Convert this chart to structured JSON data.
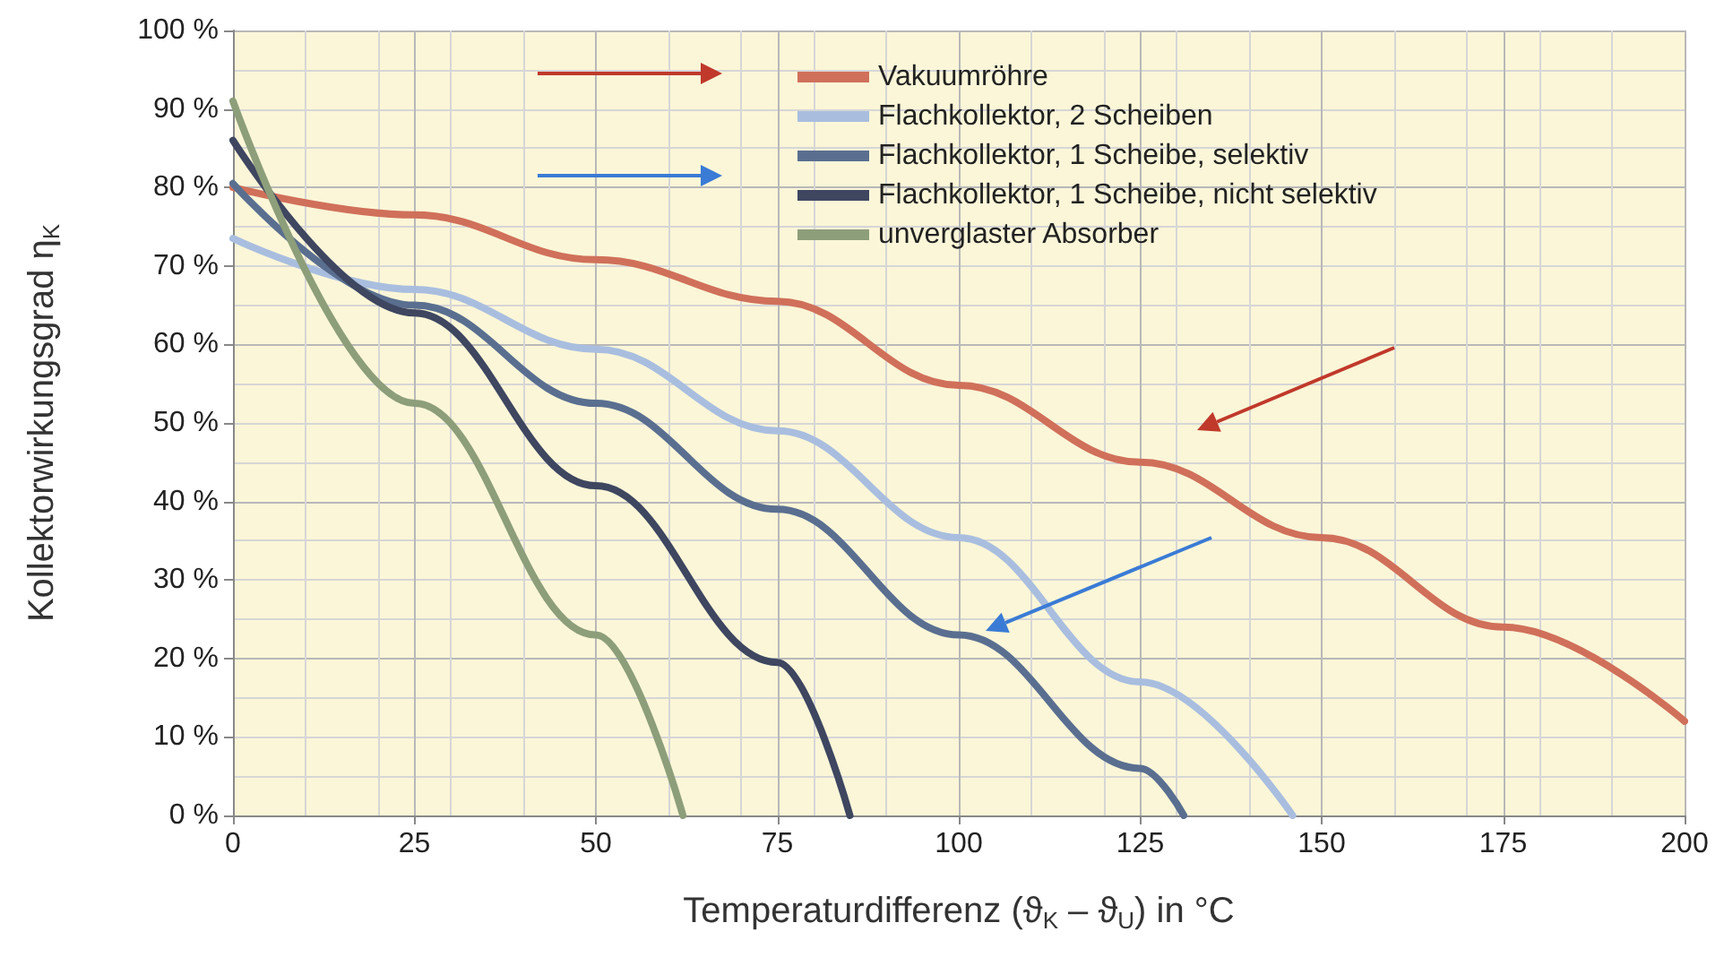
{
  "chart_data": {
    "type": "line",
    "xlabel": "Temperaturdifferenz (ϑ$_{K}$ – ϑ$_{U}$) in °C",
    "ylabel": "Kollektorwirkungsgrad η$_{K}$",
    "series": [
      {
        "name": "Vakuumröhre",
        "color": "#d0705a",
        "x": [
          0,
          25,
          50,
          75,
          100,
          125,
          150,
          175,
          200
        ],
        "values": [
          80,
          76.5,
          70.8,
          65.5,
          54.8,
          45,
          35.4,
          24,
          12
        ]
      },
      {
        "name": "Flachkollektor, 2 Scheiben",
        "color": "#a9bedf",
        "x": [
          0,
          25,
          50,
          75,
          100,
          125,
          146
        ],
        "values": [
          73.5,
          67,
          59.4,
          49,
          35.4,
          17,
          0
        ]
      },
      {
        "name": "Flachkollektor, 1 Scheibe, selektiv",
        "color": "#5a6f90",
        "x": [
          0,
          25,
          50,
          75,
          100,
          125,
          131
        ],
        "values": [
          80.5,
          65,
          52.5,
          39,
          23,
          6,
          0
        ]
      },
      {
        "name": "Flachkollektor, 1 Scheibe, nicht selektiv",
        "color": "#3e4660",
        "x": [
          0,
          25,
          50,
          75,
          85
        ],
        "values": [
          86,
          64,
          42,
          19.5,
          0
        ]
      },
      {
        "name": "unverglaster Absorber",
        "color": "#8d9e7a",
        "x": [
          0,
          25,
          50,
          62
        ],
        "values": [
          91,
          52.5,
          23,
          0
        ]
      }
    ],
    "xlim": [
      0,
      200
    ],
    "xticks": [
      0,
      25,
      50,
      75,
      100,
      125,
      150,
      175,
      200
    ],
    "ylim": [
      0,
      100
    ],
    "yticks": [
      {
        "value": 0,
        "label": "0 %"
      },
      {
        "value": 10,
        "label": "10 %"
      },
      {
        "value": 20,
        "label": "20 %"
      },
      {
        "value": 30,
        "label": "30 %"
      },
      {
        "value": 40,
        "label": "40 %"
      },
      {
        "value": 50,
        "label": "50 %"
      },
      {
        "value": 60,
        "label": "60 %"
      },
      {
        "value": 70,
        "label": "70 %"
      },
      {
        "value": 80,
        "label": "80 %"
      },
      {
        "value": 90,
        "label": "90 %"
      },
      {
        "value": 100,
        "label": "100 %"
      }
    ],
    "grid": true,
    "legend": "top",
    "marker": "none",
    "line_style": "solid"
  }
}
